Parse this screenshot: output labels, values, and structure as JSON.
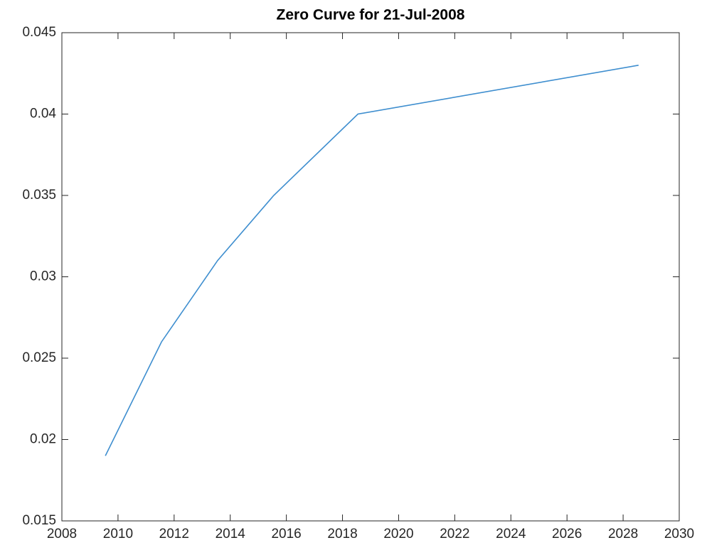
{
  "chart_data": {
    "type": "line",
    "title": "Zero Curve for 21-Jul-2008",
    "x": [
      2009.55,
      2011.55,
      2013.55,
      2015.55,
      2018.55,
      2028.55
    ],
    "series": [
      {
        "color": "#3e8ecf",
        "values": [
          0.019,
          0.026,
          0.031,
          0.035,
          0.04,
          0.043
        ]
      }
    ],
    "xlim": [
      2008,
      2030
    ],
    "xticks": [
      2008,
      2010,
      2012,
      2014,
      2016,
      2018,
      2020,
      2022,
      2024,
      2026,
      2028,
      2030
    ],
    "ylim": [
      0.015,
      0.045
    ],
    "yticks": [
      0.015,
      0.02,
      0.025,
      0.03,
      0.035,
      0.04,
      0.045
    ],
    "grid": false
  }
}
